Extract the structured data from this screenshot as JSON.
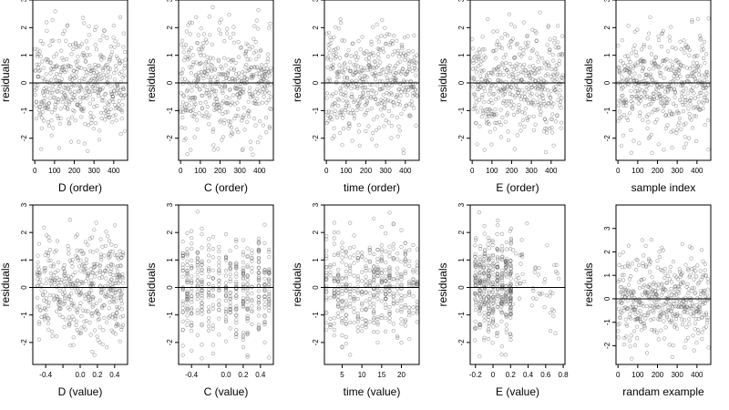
{
  "chart_data": [
    {
      "type": "scatter",
      "xlabel": "D (order)",
      "ylabel": "residuals",
      "xlim": [
        -10,
        470
      ],
      "ylim": [
        -2.8,
        3.0
      ],
      "xticks": [
        0,
        100,
        200,
        300,
        400
      ],
      "yticks": [
        -2,
        -1,
        0,
        1,
        2,
        3
      ],
      "ref_line_y": 0,
      "x_kind": "index",
      "n": 460,
      "pattern": "uniform",
      "seed": 11
    },
    {
      "type": "scatter",
      "xlabel": "C (order)",
      "ylabel": "residuals",
      "xlim": [
        -10,
        470
      ],
      "ylim": [
        -2.8,
        3.0
      ],
      "xticks": [
        0,
        100,
        200,
        300,
        400
      ],
      "yticks": [
        -2,
        -1,
        0,
        1,
        2,
        3
      ],
      "ref_line_y": 0,
      "x_kind": "index",
      "n": 460,
      "pattern": "uniform",
      "seed": 23
    },
    {
      "type": "scatter",
      "xlabel": "time (order)",
      "ylabel": "residuals",
      "xlim": [
        -10,
        470
      ],
      "ylim": [
        -2.8,
        3.0
      ],
      "xticks": [
        0,
        100,
        200,
        300,
        400
      ],
      "yticks": [
        -2,
        -1,
        0,
        1,
        2,
        3
      ],
      "ref_line_y": 0,
      "x_kind": "index",
      "n": 460,
      "pattern": "uniform",
      "seed": 37
    },
    {
      "type": "scatter",
      "xlabel": "E (order)",
      "ylabel": "residuals",
      "xlim": [
        -10,
        470
      ],
      "ylim": [
        -2.8,
        3.0
      ],
      "xticks": [
        0,
        100,
        200,
        300,
        400
      ],
      "yticks": [
        -2,
        -1,
        0,
        1,
        2,
        3
      ],
      "ref_line_y": 0,
      "x_kind": "index",
      "n": 460,
      "pattern": "uniform",
      "seed": 41
    },
    {
      "type": "scatter",
      "xlabel": "sample index",
      "ylabel": "residuals",
      "xlim": [
        -10,
        470
      ],
      "ylim": [
        -2.8,
        3.0
      ],
      "xticks": [
        0,
        100,
        200,
        300,
        400
      ],
      "yticks": [
        -2,
        -1,
        0,
        1,
        2,
        3
      ],
      "ref_line_y": 0,
      "x_kind": "index",
      "n": 460,
      "pattern": "uniform",
      "seed": 53
    },
    {
      "type": "scatter",
      "xlabel": "D (value)",
      "ylabel": "residuals",
      "xlim": [
        -0.55,
        0.55
      ],
      "ylim": [
        -2.8,
        3.0
      ],
      "xticks": [
        -0.4,
        -0.2,
        0.0,
        0.2,
        0.4
      ],
      "xtick_labels": [
        "-0.4",
        "",
        "0.0",
        "0.2",
        "0.4"
      ],
      "yticks": [
        -2,
        -1,
        0,
        1,
        2,
        3
      ],
      "ref_line_y": 0,
      "x_kind": "value",
      "n": 460,
      "pattern": "continuous",
      "seed": 61
    },
    {
      "type": "scatter",
      "xlabel": "C (value)",
      "ylabel": "residuals",
      "xlim": [
        -0.55,
        0.55
      ],
      "ylim": [
        -2.8,
        3.0
      ],
      "xticks": [
        -0.4,
        -0.2,
        0.0,
        0.2,
        0.4
      ],
      "xtick_labels": [
        "-0.4",
        "",
        "0.0",
        "0.2",
        "0.4"
      ],
      "yticks": [
        -2,
        -1,
        0,
        1,
        2,
        3
      ],
      "ref_line_y": 0,
      "x_kind": "value",
      "n": 460,
      "pattern": "discrete",
      "levels": [
        -0.5,
        -0.45,
        -0.4,
        -0.33,
        -0.28,
        -0.2,
        -0.15,
        -0.08,
        0.0,
        0.05,
        0.12,
        0.2,
        0.25,
        0.3,
        0.38,
        0.45,
        0.5
      ],
      "seed": 71
    },
    {
      "type": "scatter",
      "xlabel": "time (value)",
      "ylabel": "residuals",
      "xlim": [
        0.5,
        24.5
      ],
      "ylim": [
        -2.8,
        3.0
      ],
      "xticks": [
        5,
        10,
        15,
        20
      ],
      "yticks": [
        -2,
        -1,
        0,
        1,
        2,
        3
      ],
      "ref_line_y": 0,
      "x_kind": "value",
      "n": 460,
      "pattern": "discrete",
      "levels": [
        1,
        2,
        3,
        4,
        5,
        6,
        7,
        8,
        9,
        10,
        11,
        12,
        13,
        14,
        15,
        16,
        17,
        18,
        19,
        20,
        21,
        22,
        23,
        24
      ],
      "seed": 83
    },
    {
      "type": "scatter",
      "xlabel": "E (value)",
      "ylabel": "residuals",
      "xlim": [
        -0.26,
        0.82
      ],
      "ylim": [
        -2.8,
        3.0
      ],
      "xticks": [
        -0.2,
        0.0,
        0.2,
        0.4,
        0.6,
        0.8
      ],
      "yticks": [
        -2,
        -1,
        0,
        1,
        2,
        3
      ],
      "ref_line_y": 0,
      "x_kind": "value",
      "n": 460,
      "pattern": "skewed",
      "levels": [
        -0.2,
        -0.15,
        -0.1,
        -0.05,
        0.0,
        0.05,
        0.1,
        0.15,
        0.2
      ],
      "seed": 97
    },
    {
      "type": "scatter",
      "xlabel": "randam example",
      "ylabel": "residuals",
      "xlim": [
        -10,
        470
      ],
      "ylim": [
        -2.8,
        4.0
      ],
      "xticks": [
        0,
        100,
        200,
        300,
        400
      ],
      "yticks": [
        -2,
        -1,
        0,
        1,
        2,
        3
      ],
      "ref_line_y": 0,
      "x_kind": "index",
      "n": 460,
      "pattern": "uniform",
      "seed": 103
    }
  ]
}
